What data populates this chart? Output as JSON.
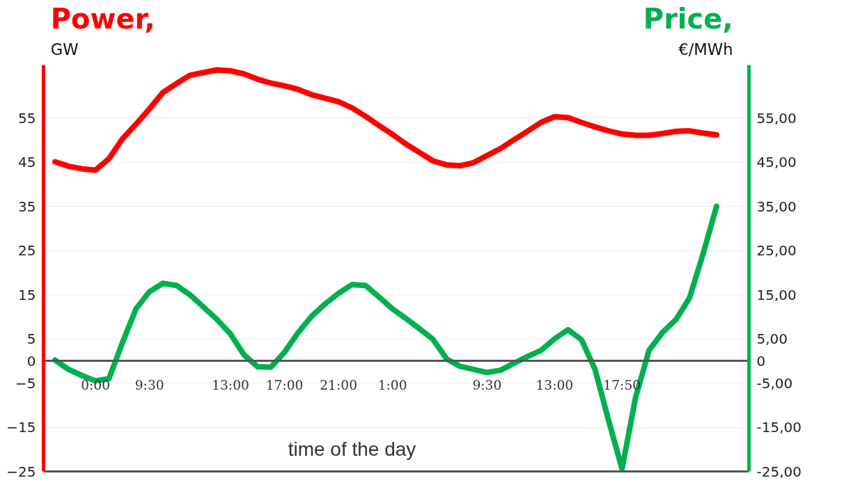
{
  "chart_data": {
    "type": "line",
    "ylabel": "Power, GW",
    "y2label": "Price, €/MWh",
    "xlabel": "time of the day",
    "categories": [
      null,
      null,
      null,
      "0:00",
      null,
      null,
      null,
      "9:30",
      null,
      null,
      null,
      null,
      null,
      "13:00",
      null,
      null,
      null,
      "17:00",
      null,
      null,
      null,
      "21:00",
      null,
      null,
      null,
      "1:00",
      null,
      null,
      null,
      null,
      null,
      null,
      "9:30",
      null,
      null,
      null,
      null,
      "13:00",
      null,
      null,
      null,
      null,
      "17:50",
      null,
      null,
      null,
      null,
      null,
      null,
      null
    ],
    "ylim": [
      -25,
      67
    ],
    "yticks": [
      -25,
      -15,
      -5,
      0,
      5,
      15,
      25,
      35,
      45,
      55
    ],
    "y2lim": [
      -25,
      67
    ],
    "y2ticks": [
      {
        "value": -25,
        "label": "-25,00"
      },
      {
        "value": -15,
        "label": "-15,00"
      },
      {
        "value": -5,
        "label": "-5,00"
      },
      0,
      {
        "value": 5,
        "label": "5,00"
      },
      {
        "value": 15,
        "label": "15,00"
      },
      {
        "value": 25,
        "label": "25,00"
      },
      {
        "value": 35,
        "label": "35,00"
      },
      {
        "value": 45,
        "label": "45,00"
      },
      {
        "value": 55,
        "label": "55,00"
      }
    ],
    "grid": "y",
    "line_style": "solid",
    "marker": "none",
    "series": [
      {
        "color": "#ff0000",
        "values": [
          45.1,
          44.1,
          43.5,
          43.2,
          45.8,
          50.3,
          53.6,
          57.1,
          60.8,
          62.8,
          64.7,
          65.3,
          65.9,
          65.7,
          65.0,
          63.8,
          62.9,
          62.3,
          61.5,
          60.3,
          59.5,
          58.7,
          57.3,
          55.4,
          53.3,
          51.3,
          49.1,
          47.2,
          45.3,
          44.4,
          44.2,
          44.9,
          46.5,
          48.1,
          50.1,
          52.0,
          54.0,
          55.3,
          55.1,
          54.0,
          53.0,
          52.1,
          51.4,
          51.1,
          51.1,
          51.5,
          52.0,
          52.1,
          51.6,
          51.2
        ]
      },
      {
        "color": "#00b050",
        "axis": "y2",
        "values": [
          0.2,
          -1.9,
          -3.3,
          -4.5,
          -4.0,
          4.2,
          11.8,
          15.7,
          17.6,
          17.1,
          15.0,
          12.2,
          9.4,
          6.1,
          1.4,
          -1.3,
          -1.4,
          2.0,
          6.4,
          10.1,
          12.9,
          15.3,
          17.3,
          17.1,
          14.5,
          11.8,
          9.6,
          7.3,
          4.9,
          0.5,
          -1.2,
          -1.9,
          -2.6,
          -2.1,
          -0.5,
          1.0,
          2.4,
          5.0,
          7.1,
          4.8,
          -1.9,
          -13.4,
          -24.4,
          -8.3,
          2.4,
          6.5,
          9.4,
          14.3,
          24.2,
          35.0
        ]
      }
    ]
  }
}
